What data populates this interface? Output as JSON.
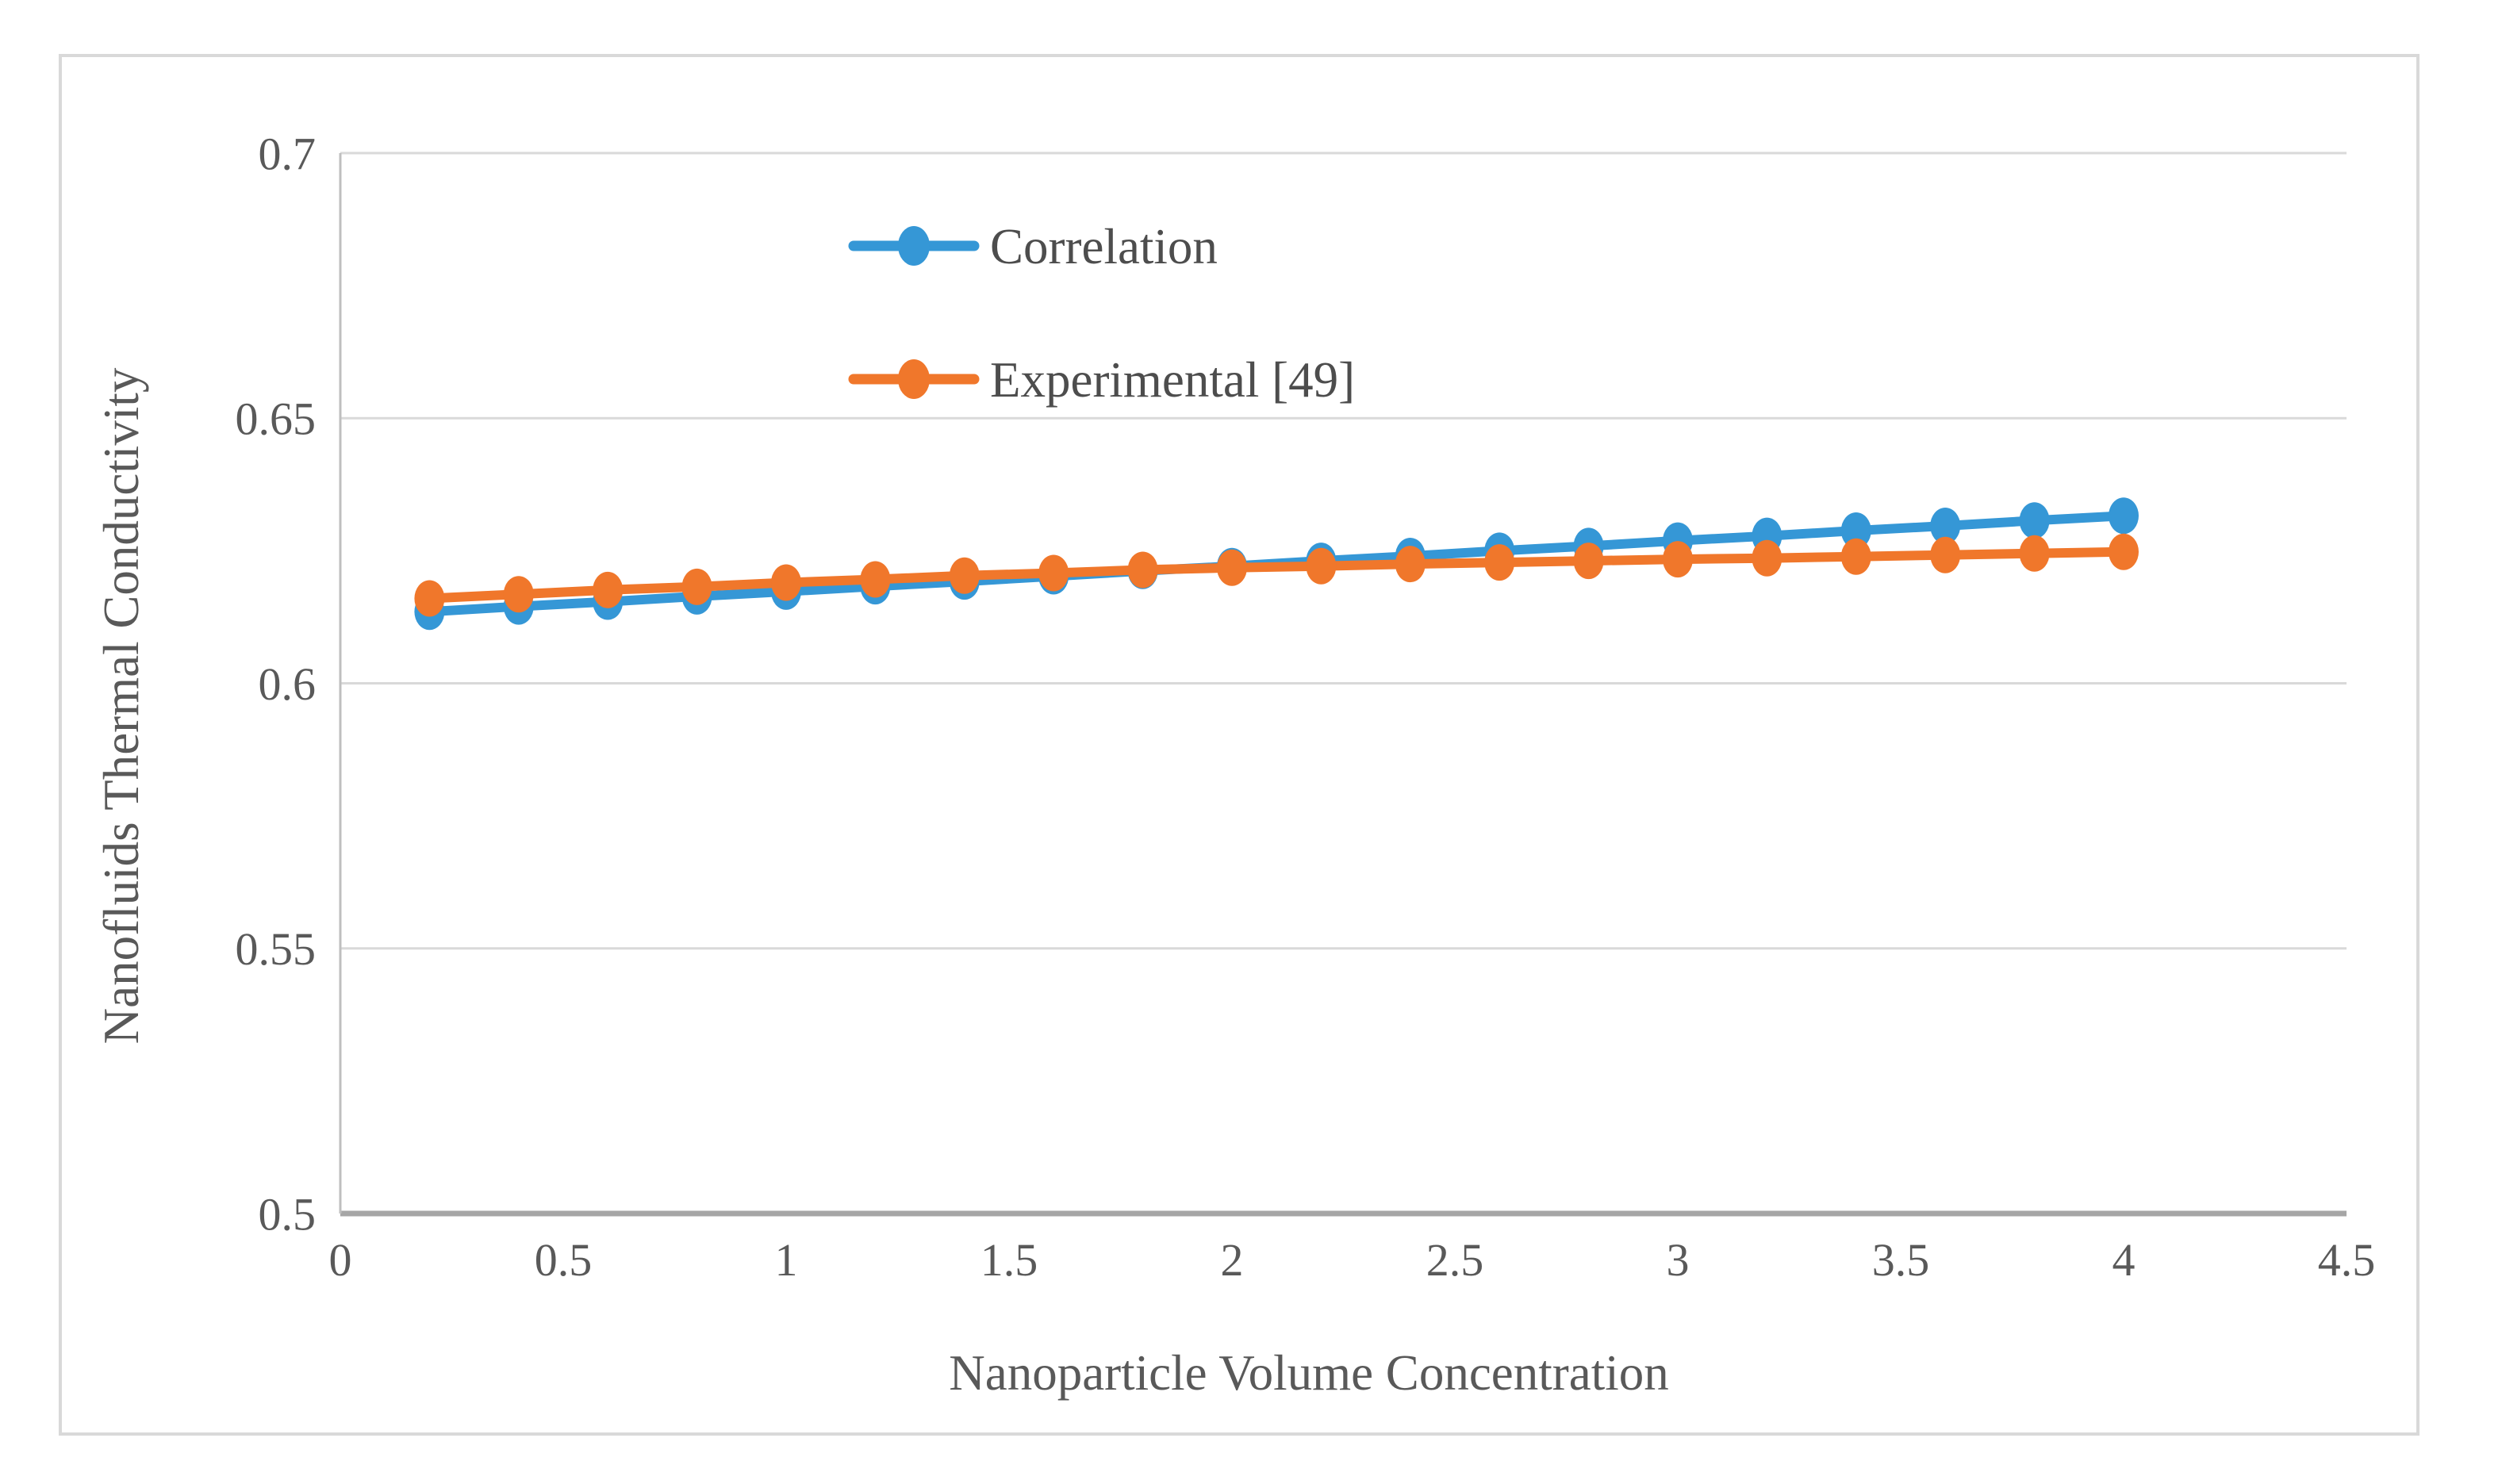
{
  "figure": {
    "background_color": "#ffffff",
    "border_color": "#d9d9d9",
    "gridline_color": "#d9d9d9",
    "x_axis_line_color": "#a6a6a6",
    "y_axis_line_color": "#bfbfbf",
    "text_color": "#595959"
  },
  "chart_data": {
    "type": "line",
    "title": "",
    "xlabel": "Nanoparticle Volume Concentration",
    "ylabel": "Nanofluids Thermal Conductivity",
    "xlim": [
      0,
      4.5
    ],
    "ylim": [
      0.5,
      0.7
    ],
    "grid": "horizontal",
    "legend_position": "inside-upper-left",
    "x_ticks": {
      "values": [
        0,
        0.5,
        1,
        1.5,
        2,
        2.5,
        3,
        3.5,
        4,
        4.5
      ],
      "labels": [
        "0",
        "0.5",
        "1",
        "1.5",
        "2",
        "2.5",
        "3",
        "3.5",
        "4",
        "4.5"
      ]
    },
    "y_ticks": {
      "values": [
        0.7,
        0.65,
        0.6,
        0.55,
        0.5
      ],
      "labels": [
        "0.7",
        "0.65",
        "0.6",
        "0.55",
        "0.5"
      ]
    },
    "x": [
      0.2,
      0.4,
      0.6,
      0.8,
      1.0,
      1.2,
      1.4,
      1.6,
      1.8,
      2.0,
      2.2,
      2.4,
      2.6,
      2.8,
      3.0,
      3.2,
      3.4,
      3.6,
      3.8,
      4.0
    ],
    "series": [
      {
        "name": "Correlation",
        "color": "#3597d6",
        "marker": "circle",
        "values": [
          0.6135,
          0.6145,
          0.6154,
          0.6164,
          0.6173,
          0.6183,
          0.6192,
          0.6202,
          0.6212,
          0.6221,
          0.6231,
          0.624,
          0.625,
          0.6259,
          0.6269,
          0.6278,
          0.6288,
          0.6297,
          0.6307,
          0.6316
        ]
      },
      {
        "name": "Experimental [49]",
        "color": "#f0772b",
        "marker": "circle",
        "values": [
          0.616,
          0.6168,
          0.6176,
          0.6182,
          0.619,
          0.6196,
          0.6203,
          0.6208,
          0.6214,
          0.6218,
          0.6221,
          0.6225,
          0.6228,
          0.6231,
          0.6234,
          0.6236,
          0.6239,
          0.6242,
          0.6245,
          0.6248
        ]
      }
    ]
  }
}
